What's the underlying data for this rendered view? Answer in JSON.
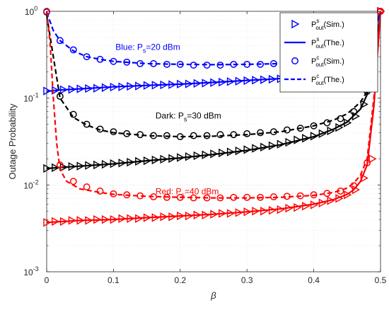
{
  "chart_data": {
    "type": "line",
    "xlabel": "β",
    "ylabel": "Outage Probability",
    "xlim": [
      0,
      0.5
    ],
    "ylim": [
      0.001,
      1
    ],
    "yscale": "log",
    "xticks": [
      0,
      0.1,
      0.2,
      0.3,
      0.4,
      0.5
    ],
    "xtick_labels": [
      "0",
      "0.1",
      "0.2",
      "0.3",
      "0.4",
      "0.5"
    ],
    "yticks": [
      0.001,
      0.01,
      0.1,
      1
    ],
    "ytick_labels": [
      {
        "base": "10",
        "exp": "-3"
      },
      {
        "base": "10",
        "exp": "-2"
      },
      {
        "base": "10",
        "exp": "-1"
      },
      {
        "base": "10",
        "exp": "0"
      }
    ],
    "grid": true,
    "legend_position": "top-right",
    "legend": [
      {
        "marker": "triangle",
        "line": "none",
        "base": "P",
        "sup": "s",
        "sub": "out",
        "suffix": "(Sim.)"
      },
      {
        "marker": "none",
        "line": "solid",
        "base": "P",
        "sup": "s",
        "sub": "out",
        "suffix": "(The.)"
      },
      {
        "marker": "circle",
        "line": "none",
        "base": "P",
        "sup": "c",
        "sub": "out",
        "suffix": "(Sim.)"
      },
      {
        "marker": "none",
        "line": "dashed",
        "base": "P",
        "sup": "c",
        "sub": "out",
        "suffix": "(The.)"
      }
    ],
    "annotations": [
      {
        "text_pre": "Blue: P",
        "sub": "s",
        "text_post": "=20 dBm",
        "color": "#0000ff",
        "x": 0.103,
        "y": 0.36
      },
      {
        "text_pre": "Dark: P",
        "sub": "s",
        "text_post": "=30 dBm",
        "color": "#000000",
        "x": 0.163,
        "y": 0.058
      },
      {
        "text_pre": "Red: P",
        "sub": "s",
        "text_post": "=40 dBm",
        "color": "#ff0000",
        "x": 0.163,
        "y": 0.0078
      }
    ],
    "series": [
      {
        "color": "#0000ff",
        "ps_theory_x": [
          0,
          0.02,
          0.05,
          0.1,
          0.15,
          0.2,
          0.25,
          0.3,
          0.35,
          0.4,
          0.43,
          0.45,
          0.47,
          0.48,
          0.49,
          0.5
        ],
        "ps_theory_y": [
          0.12,
          0.124,
          0.128,
          0.135,
          0.14,
          0.145,
          0.152,
          0.16,
          0.168,
          0.178,
          0.19,
          0.21,
          0.27,
          0.36,
          0.55,
          1.0
        ],
        "ps_sim_x": [
          0,
          0.0125,
          0.025,
          0.0375,
          0.05,
          0.0625,
          0.075,
          0.0875,
          0.1,
          0.1125,
          0.125,
          0.1375,
          0.15,
          0.1625,
          0.175,
          0.1875,
          0.2,
          0.2125,
          0.225,
          0.2375,
          0.25,
          0.2625,
          0.275,
          0.2875,
          0.3,
          0.3125,
          0.325,
          0.3375,
          0.35,
          0.3625,
          0.375,
          0.3875,
          0.4,
          0.4125,
          0.425,
          0.4375,
          0.45,
          0.4625,
          0.475,
          0.4875,
          0.5
        ],
        "ps_sim_y": [
          0.121,
          0.123,
          0.125,
          0.126,
          0.128,
          0.129,
          0.13,
          0.132,
          0.134,
          0.135,
          0.137,
          0.138,
          0.14,
          0.141,
          0.142,
          0.143,
          0.145,
          0.146,
          0.148,
          0.149,
          0.151,
          0.153,
          0.155,
          0.157,
          0.159,
          0.161,
          0.163,
          0.165,
          0.167,
          0.17,
          0.172,
          0.175,
          0.178,
          0.182,
          0.187,
          0.194,
          0.205,
          0.23,
          0.3,
          0.45,
          1.0
        ],
        "pc_theory_x": [
          0,
          0.01,
          0.02,
          0.04,
          0.06,
          0.08,
          0.1,
          0.15,
          0.2,
          0.25,
          0.3,
          0.35,
          0.4,
          0.43,
          0.45,
          0.47,
          0.48,
          0.49,
          0.5
        ],
        "pc_theory_y": [
          0.98,
          0.6,
          0.46,
          0.35,
          0.3,
          0.28,
          0.265,
          0.25,
          0.245,
          0.243,
          0.245,
          0.25,
          0.26,
          0.275,
          0.3,
          0.37,
          0.45,
          0.6,
          1.0
        ],
        "pc_sim_x": [
          0,
          0.02,
          0.04,
          0.06,
          0.08,
          0.1,
          0.12,
          0.14,
          0.16,
          0.18,
          0.2,
          0.22,
          0.24,
          0.26,
          0.28,
          0.3,
          0.32,
          0.34,
          0.36,
          0.38,
          0.4,
          0.42,
          0.44,
          0.46,
          0.48,
          0.5
        ],
        "pc_sim_y": [
          0.98,
          0.46,
          0.36,
          0.3,
          0.28,
          0.265,
          0.26,
          0.25,
          0.25,
          0.245,
          0.245,
          0.24,
          0.24,
          0.24,
          0.245,
          0.245,
          0.245,
          0.25,
          0.25,
          0.26,
          0.265,
          0.28,
          0.3,
          0.37,
          0.48,
          1.0
        ]
      },
      {
        "color": "#000000",
        "ps_theory_x": [
          0,
          0.05,
          0.1,
          0.15,
          0.2,
          0.25,
          0.3,
          0.35,
          0.4,
          0.43,
          0.45,
          0.47,
          0.48,
          0.49,
          0.5
        ],
        "ps_theory_y": [
          0.0155,
          0.0165,
          0.0175,
          0.019,
          0.0205,
          0.0225,
          0.025,
          0.029,
          0.036,
          0.044,
          0.053,
          0.075,
          0.11,
          0.2,
          1.0
        ],
        "ps_sim_x": [
          0,
          0.0125,
          0.025,
          0.0375,
          0.05,
          0.0625,
          0.075,
          0.0875,
          0.1,
          0.1125,
          0.125,
          0.1375,
          0.15,
          0.1625,
          0.175,
          0.1875,
          0.2,
          0.2125,
          0.225,
          0.2375,
          0.25,
          0.2625,
          0.275,
          0.2875,
          0.3,
          0.3125,
          0.325,
          0.3375,
          0.35,
          0.3625,
          0.375,
          0.3875,
          0.4,
          0.4125,
          0.425,
          0.4375,
          0.45,
          0.4625,
          0.475,
          0.4875,
          0.5
        ],
        "ps_sim_y": [
          0.0155,
          0.0158,
          0.016,
          0.0163,
          0.0165,
          0.0168,
          0.017,
          0.0173,
          0.0176,
          0.0179,
          0.0183,
          0.0187,
          0.019,
          0.0194,
          0.0198,
          0.0202,
          0.0207,
          0.0212,
          0.0217,
          0.0222,
          0.0228,
          0.0234,
          0.024,
          0.0247,
          0.0255,
          0.0264,
          0.0273,
          0.0283,
          0.0295,
          0.031,
          0.033,
          0.0345,
          0.0365,
          0.039,
          0.042,
          0.046,
          0.052,
          0.062,
          0.085,
          0.15,
          1.0
        ],
        "pc_theory_x": [
          0,
          0.01,
          0.02,
          0.04,
          0.06,
          0.08,
          0.1,
          0.15,
          0.2,
          0.25,
          0.3,
          0.35,
          0.4,
          0.43,
          0.45,
          0.47,
          0.48,
          0.49,
          0.5
        ],
        "pc_theory_y": [
          0.9,
          0.3,
          0.1,
          0.06,
          0.049,
          0.043,
          0.04,
          0.037,
          0.036,
          0.0365,
          0.038,
          0.041,
          0.048,
          0.056,
          0.066,
          0.09,
          0.12,
          0.22,
          1.0
        ],
        "pc_sim_x": [
          0.02,
          0.04,
          0.06,
          0.08,
          0.1,
          0.12,
          0.14,
          0.16,
          0.18,
          0.2,
          0.22,
          0.24,
          0.26,
          0.28,
          0.3,
          0.32,
          0.34,
          0.36,
          0.38,
          0.4,
          0.42,
          0.44,
          0.46,
          0.48
        ],
        "pc_sim_y": [
          0.105,
          0.065,
          0.05,
          0.044,
          0.041,
          0.039,
          0.038,
          0.037,
          0.037,
          0.036,
          0.037,
          0.037,
          0.038,
          0.038,
          0.039,
          0.04,
          0.041,
          0.043,
          0.045,
          0.048,
          0.052,
          0.058,
          0.07,
          0.12
        ]
      },
      {
        "color": "#ff0000",
        "ps_theory_x": [
          0,
          0.05,
          0.1,
          0.15,
          0.2,
          0.25,
          0.3,
          0.35,
          0.4,
          0.43,
          0.45,
          0.46,
          0.47,
          0.48,
          0.49,
          0.5
        ],
        "ps_theory_y": [
          0.0037,
          0.0039,
          0.004,
          0.0042,
          0.0044,
          0.0046,
          0.0049,
          0.0053,
          0.006,
          0.0068,
          0.0078,
          0.0088,
          0.011,
          0.017,
          0.08,
          1.0
        ],
        "ps_sim_x": [
          0,
          0.0125,
          0.025,
          0.0375,
          0.05,
          0.0625,
          0.075,
          0.0875,
          0.1,
          0.1125,
          0.125,
          0.1375,
          0.15,
          0.1625,
          0.175,
          0.1875,
          0.2,
          0.2125,
          0.225,
          0.2375,
          0.25,
          0.2625,
          0.275,
          0.2875,
          0.3,
          0.3125,
          0.325,
          0.3375,
          0.35,
          0.3625,
          0.375,
          0.3875,
          0.4,
          0.4125,
          0.425,
          0.4375,
          0.45,
          0.4625,
          0.475,
          0.4875,
          0.5
        ],
        "ps_sim_y": [
          0.0037,
          0.0038,
          0.0038,
          0.0039,
          0.0039,
          0.0039,
          0.004,
          0.004,
          0.004,
          0.0041,
          0.0041,
          0.0041,
          0.0042,
          0.0042,
          0.0043,
          0.0043,
          0.0044,
          0.0044,
          0.0045,
          0.0045,
          0.0046,
          0.0047,
          0.0047,
          0.0048,
          0.0049,
          0.005,
          0.005,
          0.0051,
          0.0052,
          0.0054,
          0.0055,
          0.0057,
          0.0059,
          0.0062,
          0.0066,
          0.007,
          0.0077,
          0.0088,
          0.012,
          0.02,
          1.0
        ],
        "pc_theory_x": [
          0,
          0.005,
          0.01,
          0.015,
          0.02,
          0.03,
          0.05,
          0.08,
          0.1,
          0.15,
          0.2,
          0.25,
          0.3,
          0.35,
          0.4,
          0.43,
          0.45,
          0.46,
          0.47,
          0.48,
          0.49,
          0.5
        ],
        "pc_theory_y": [
          1.0,
          0.45,
          0.1,
          0.03,
          0.015,
          0.011,
          0.009,
          0.0082,
          0.0078,
          0.0074,
          0.0072,
          0.0071,
          0.0071,
          0.0072,
          0.0076,
          0.0082,
          0.0092,
          0.0105,
          0.013,
          0.02,
          0.1,
          1.0
        ],
        "pc_sim_x": [
          0,
          0.02,
          0.04,
          0.06,
          0.08,
          0.1,
          0.12,
          0.14,
          0.16,
          0.18,
          0.2,
          0.22,
          0.24,
          0.26,
          0.28,
          0.3,
          0.32,
          0.34,
          0.36,
          0.38,
          0.4,
          0.42,
          0.44,
          0.46,
          0.48,
          0.5
        ],
        "pc_sim_y": [
          1.0,
          0.017,
          0.011,
          0.0095,
          0.0085,
          0.0079,
          0.0077,
          0.0075,
          0.0073,
          0.0072,
          0.0072,
          0.0071,
          0.0071,
          0.0071,
          0.0072,
          0.0072,
          0.0072,
          0.0073,
          0.0074,
          0.0075,
          0.0077,
          0.008,
          0.0085,
          0.0098,
          0.018,
          1.0
        ]
      }
    ]
  }
}
